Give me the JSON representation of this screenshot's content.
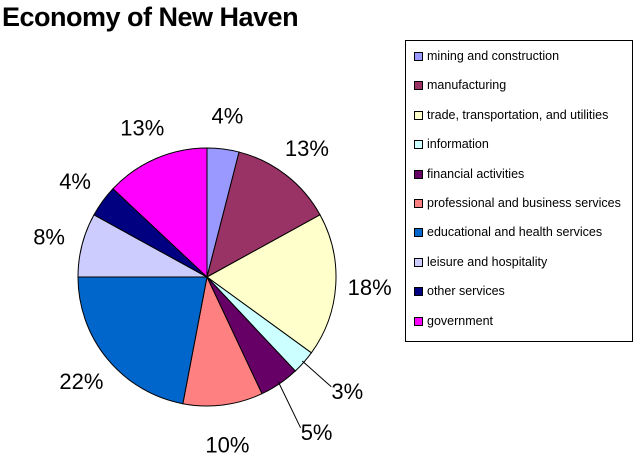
{
  "chart_data": {
    "type": "pie",
    "title": "Economy of New Haven",
    "legend_position": "right",
    "slices": [
      {
        "label": "mining and construction",
        "value": 4,
        "display": "4%",
        "color": "#9999ff"
      },
      {
        "label": "manufacturing",
        "value": 13,
        "display": "13%",
        "color": "#993366"
      },
      {
        "label": "trade, transportation, and utilities",
        "value": 18,
        "display": "18%",
        "color": "#ffffcc"
      },
      {
        "label": "information",
        "value": 3,
        "display": "3%",
        "color": "#ccffff"
      },
      {
        "label": "financial activities",
        "value": 5,
        "display": "5%",
        "color": "#660066"
      },
      {
        "label": "professional and business services",
        "value": 10,
        "display": "10%",
        "color": "#ff8080"
      },
      {
        "label": "educational and health services",
        "value": 22,
        "display": "22%",
        "color": "#0066cc"
      },
      {
        "label": "leisure and hospitality",
        "value": 8,
        "display": "8%",
        "color": "#ccccff"
      },
      {
        "label": "other services",
        "value": 4,
        "display": "4%",
        "color": "#000080"
      },
      {
        "label": "government",
        "value": 13,
        "display": "13%",
        "color": "#ff00ff"
      }
    ]
  }
}
